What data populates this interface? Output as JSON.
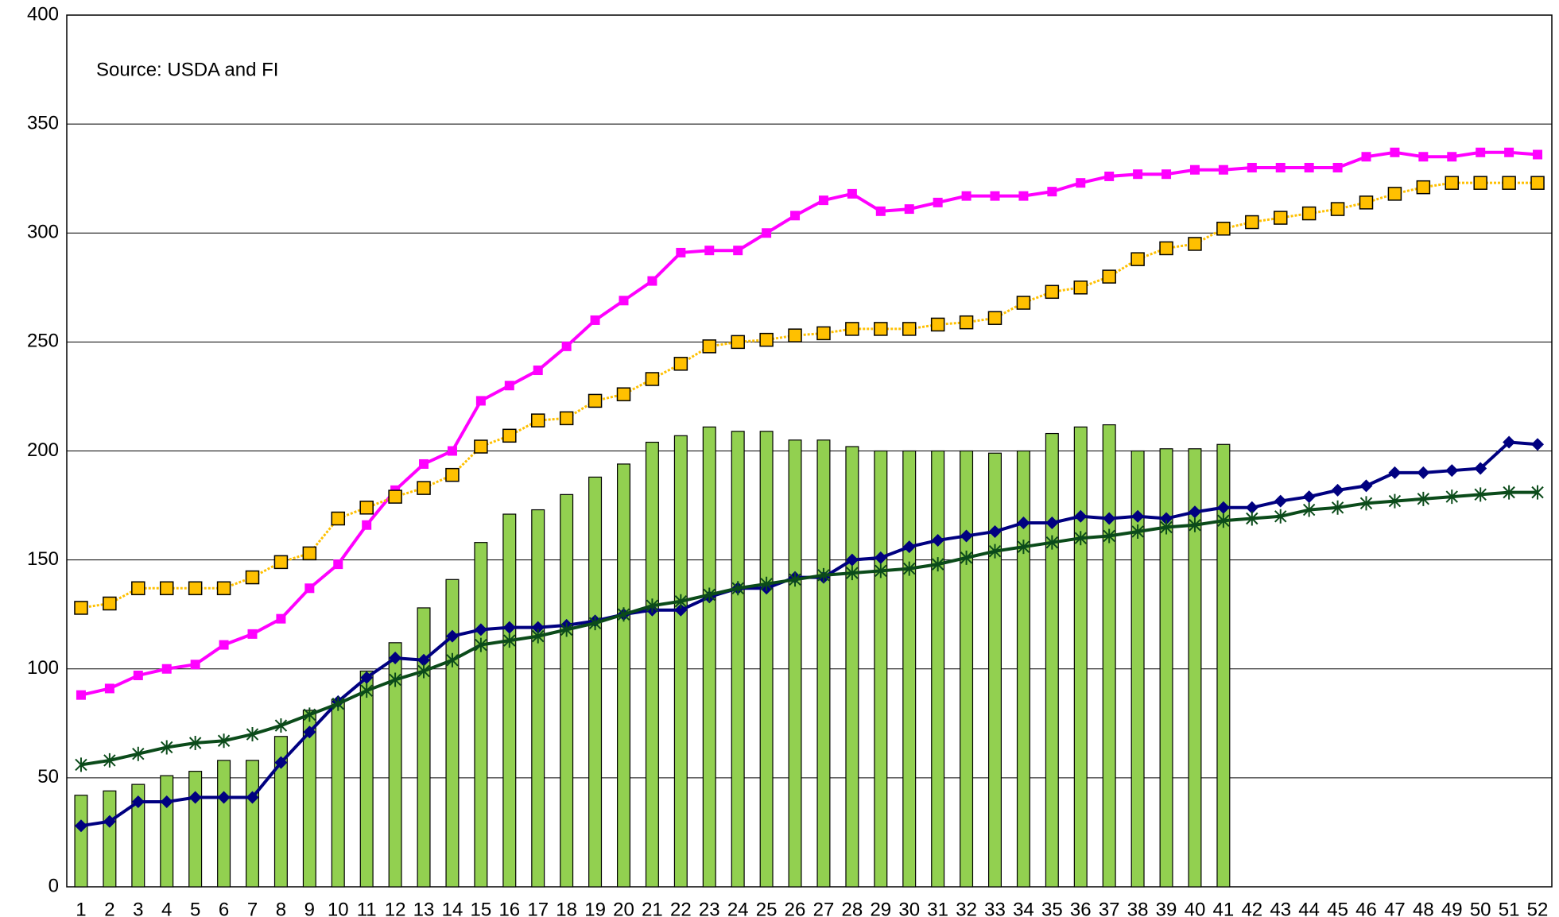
{
  "chart_data": {
    "type": "bar",
    "annotation": "Source: USDA and FI",
    "categories": [
      "1",
      "2",
      "3",
      "4",
      "5",
      "6",
      "7",
      "8",
      "9",
      "10",
      "11",
      "12",
      "13",
      "14",
      "15",
      "16",
      "17",
      "18",
      "19",
      "20",
      "21",
      "22",
      "23",
      "24",
      "25",
      "26",
      "27",
      "28",
      "29",
      "30",
      "31",
      "32",
      "33",
      "34",
      "35",
      "36",
      "37",
      "38",
      "39",
      "40",
      "41",
      "42",
      "43",
      "44",
      "45",
      "46",
      "47",
      "48",
      "49",
      "50",
      "51",
      "52"
    ],
    "ylim": [
      0,
      400
    ],
    "yticks": [
      0,
      50,
      100,
      150,
      200,
      250,
      300,
      350,
      400
    ],
    "grid": true,
    "series": [
      {
        "type": "bar",
        "color": "#92d050",
        "values": [
          42,
          44,
          47,
          51,
          53,
          58,
          58,
          69,
          81,
          86,
          99,
          112,
          128,
          141,
          158,
          171,
          173,
          180,
          188,
          194,
          204,
          207,
          211,
          209,
          209,
          205,
          205,
          202,
          200,
          200,
          200,
          200,
          199,
          200,
          208,
          211,
          212,
          200,
          201,
          201,
          203,
          null,
          null,
          null,
          null,
          null,
          null,
          null,
          null,
          null,
          null,
          null
        ]
      },
      {
        "type": "line",
        "color": "#ff00ff",
        "marker": "square",
        "values": [
          88,
          91,
          97,
          100,
          102,
          111,
          116,
          123,
          137,
          148,
          166,
          182,
          194,
          200,
          223,
          230,
          237,
          248,
          260,
          269,
          278,
          291,
          292,
          292,
          300,
          308,
          315,
          318,
          310,
          311,
          314,
          317,
          317,
          317,
          319,
          323,
          326,
          327,
          327,
          329,
          329,
          330,
          330,
          330,
          330,
          335,
          337,
          335,
          335,
          337,
          337,
          336
        ]
      },
      {
        "type": "line",
        "color": "#ffc000",
        "marker": "open-square",
        "values": [
          128,
          130,
          137,
          137,
          137,
          137,
          142,
          149,
          153,
          169,
          174,
          179,
          183,
          189,
          202,
          207,
          214,
          215,
          223,
          226,
          233,
          240,
          248,
          250,
          251,
          253,
          254,
          256,
          256,
          256,
          258,
          259,
          261,
          268,
          273,
          275,
          280,
          288,
          293,
          295,
          302,
          305,
          307,
          309,
          311,
          314,
          318,
          321,
          323,
          323,
          323,
          323
        ]
      },
      {
        "type": "line",
        "color": "#000080",
        "marker": "diamond",
        "values": [
          28,
          30,
          39,
          39,
          41,
          41,
          41,
          57,
          71,
          85,
          96,
          105,
          104,
          115,
          118,
          119,
          119,
          120,
          122,
          125,
          127,
          127,
          133,
          137,
          137,
          142,
          142,
          150,
          151,
          156,
          159,
          161,
          163,
          167,
          167,
          170,
          169,
          170,
          169,
          172,
          174,
          174,
          177,
          179,
          182,
          184,
          190,
          190,
          191,
          192,
          204,
          203
        ]
      },
      {
        "type": "line",
        "color": "#0b4b1a",
        "marker": "star",
        "values": [
          56,
          58,
          61,
          64,
          66,
          67,
          70,
          74,
          79,
          84,
          90,
          95,
          99,
          104,
          111,
          113,
          115,
          118,
          121,
          125,
          129,
          131,
          134,
          137,
          139,
          141,
          143,
          144,
          145,
          146,
          148,
          151,
          154,
          156,
          158,
          160,
          161,
          163,
          165,
          166,
          168,
          169,
          170,
          173,
          174,
          176,
          177,
          178,
          179,
          180,
          181,
          181
        ]
      }
    ]
  }
}
